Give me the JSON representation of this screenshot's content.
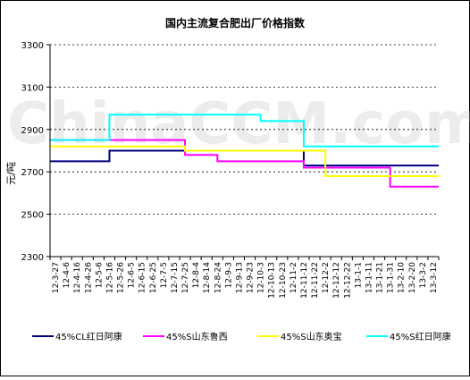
{
  "chart_data": {
    "type": "line",
    "title": "国内主流复合肥出厂价格指数",
    "ylabel": "元/吨",
    "xlabel": "",
    "ylim": [
      2300,
      3300
    ],
    "yticks": [
      2300,
      2500,
      2700,
      2900,
      3100,
      3300
    ],
    "grid": true,
    "legend_position": "bottom",
    "watermark": "ChinaCCM.com",
    "categories": [
      "12-3-27",
      "12-4-6",
      "12-4-16",
      "12-4-26",
      "12-5-6",
      "12-5-16",
      "12-5-26",
      "12-6-5",
      "12-6-15",
      "12-6-25",
      "12-7-5",
      "12-7-15",
      "12-7-25",
      "12-8-4",
      "12-8-14",
      "12-8-24",
      "12-9-3",
      "12-9-13",
      "12-9-23",
      "12-10-3",
      "12-10-13",
      "12-10-23",
      "12-11-2",
      "12-11-12",
      "12-11-22",
      "12-12-2",
      "12-12-12",
      "12-12-22",
      "13-1-1",
      "13-1-11",
      "13-1-21",
      "13-1-31",
      "13-2-10",
      "13-2-20",
      "13-3-2",
      "13-3-12"
    ],
    "series": [
      {
        "name": "45%CL红日阿康",
        "color": "#000080",
        "values": [
          2750,
          2750,
          2750,
          2750,
          2750,
          2800,
          2800,
          2800,
          2800,
          2800,
          2800,
          2800,
          2800,
          2800,
          2800,
          2800,
          2800,
          2800,
          2800,
          2800,
          2800,
          2800,
          2800,
          2730,
          2730,
          2730,
          2730,
          2730,
          2730,
          2730,
          2730,
          2730,
          2730,
          2730,
          2730,
          2730
        ]
      },
      {
        "name": "45%S山东鲁西",
        "color": "#ff00ff",
        "values": [
          2850,
          2850,
          2850,
          2850,
          2850,
          2850,
          2850,
          2850,
          2850,
          2850,
          2850,
          2850,
          2780,
          2780,
          2780,
          2750,
          2750,
          2750,
          2750,
          2750,
          2750,
          2750,
          2750,
          2720,
          2720,
          2720,
          2720,
          2720,
          2720,
          2720,
          2720,
          2630,
          2630,
          2630,
          2630,
          2630
        ]
      },
      {
        "name": "45%S山东奥宝",
        "color": "#ffff00",
        "values": [
          2820,
          2820,
          2820,
          2820,
          2820,
          2820,
          2820,
          2820,
          2820,
          2820,
          2820,
          2820,
          2800,
          2800,
          2800,
          2800,
          2800,
          2800,
          2800,
          2800,
          2800,
          2800,
          2800,
          2800,
          2800,
          2680,
          2680,
          2680,
          2680,
          2680,
          2680,
          2680,
          2680,
          2680,
          2680,
          2680
        ]
      },
      {
        "name": "45%S红日阿康",
        "color": "#00ffff",
        "values": [
          2850,
          2850,
          2850,
          2850,
          2850,
          2970,
          2970,
          2970,
          2970,
          2970,
          2970,
          2970,
          2970,
          2970,
          2970,
          2970,
          2970,
          2970,
          2970,
          2940,
          2940,
          2940,
          2940,
          2820,
          2820,
          2820,
          2820,
          2820,
          2820,
          2820,
          2820,
          2820,
          2820,
          2820,
          2820,
          2820
        ]
      }
    ]
  }
}
